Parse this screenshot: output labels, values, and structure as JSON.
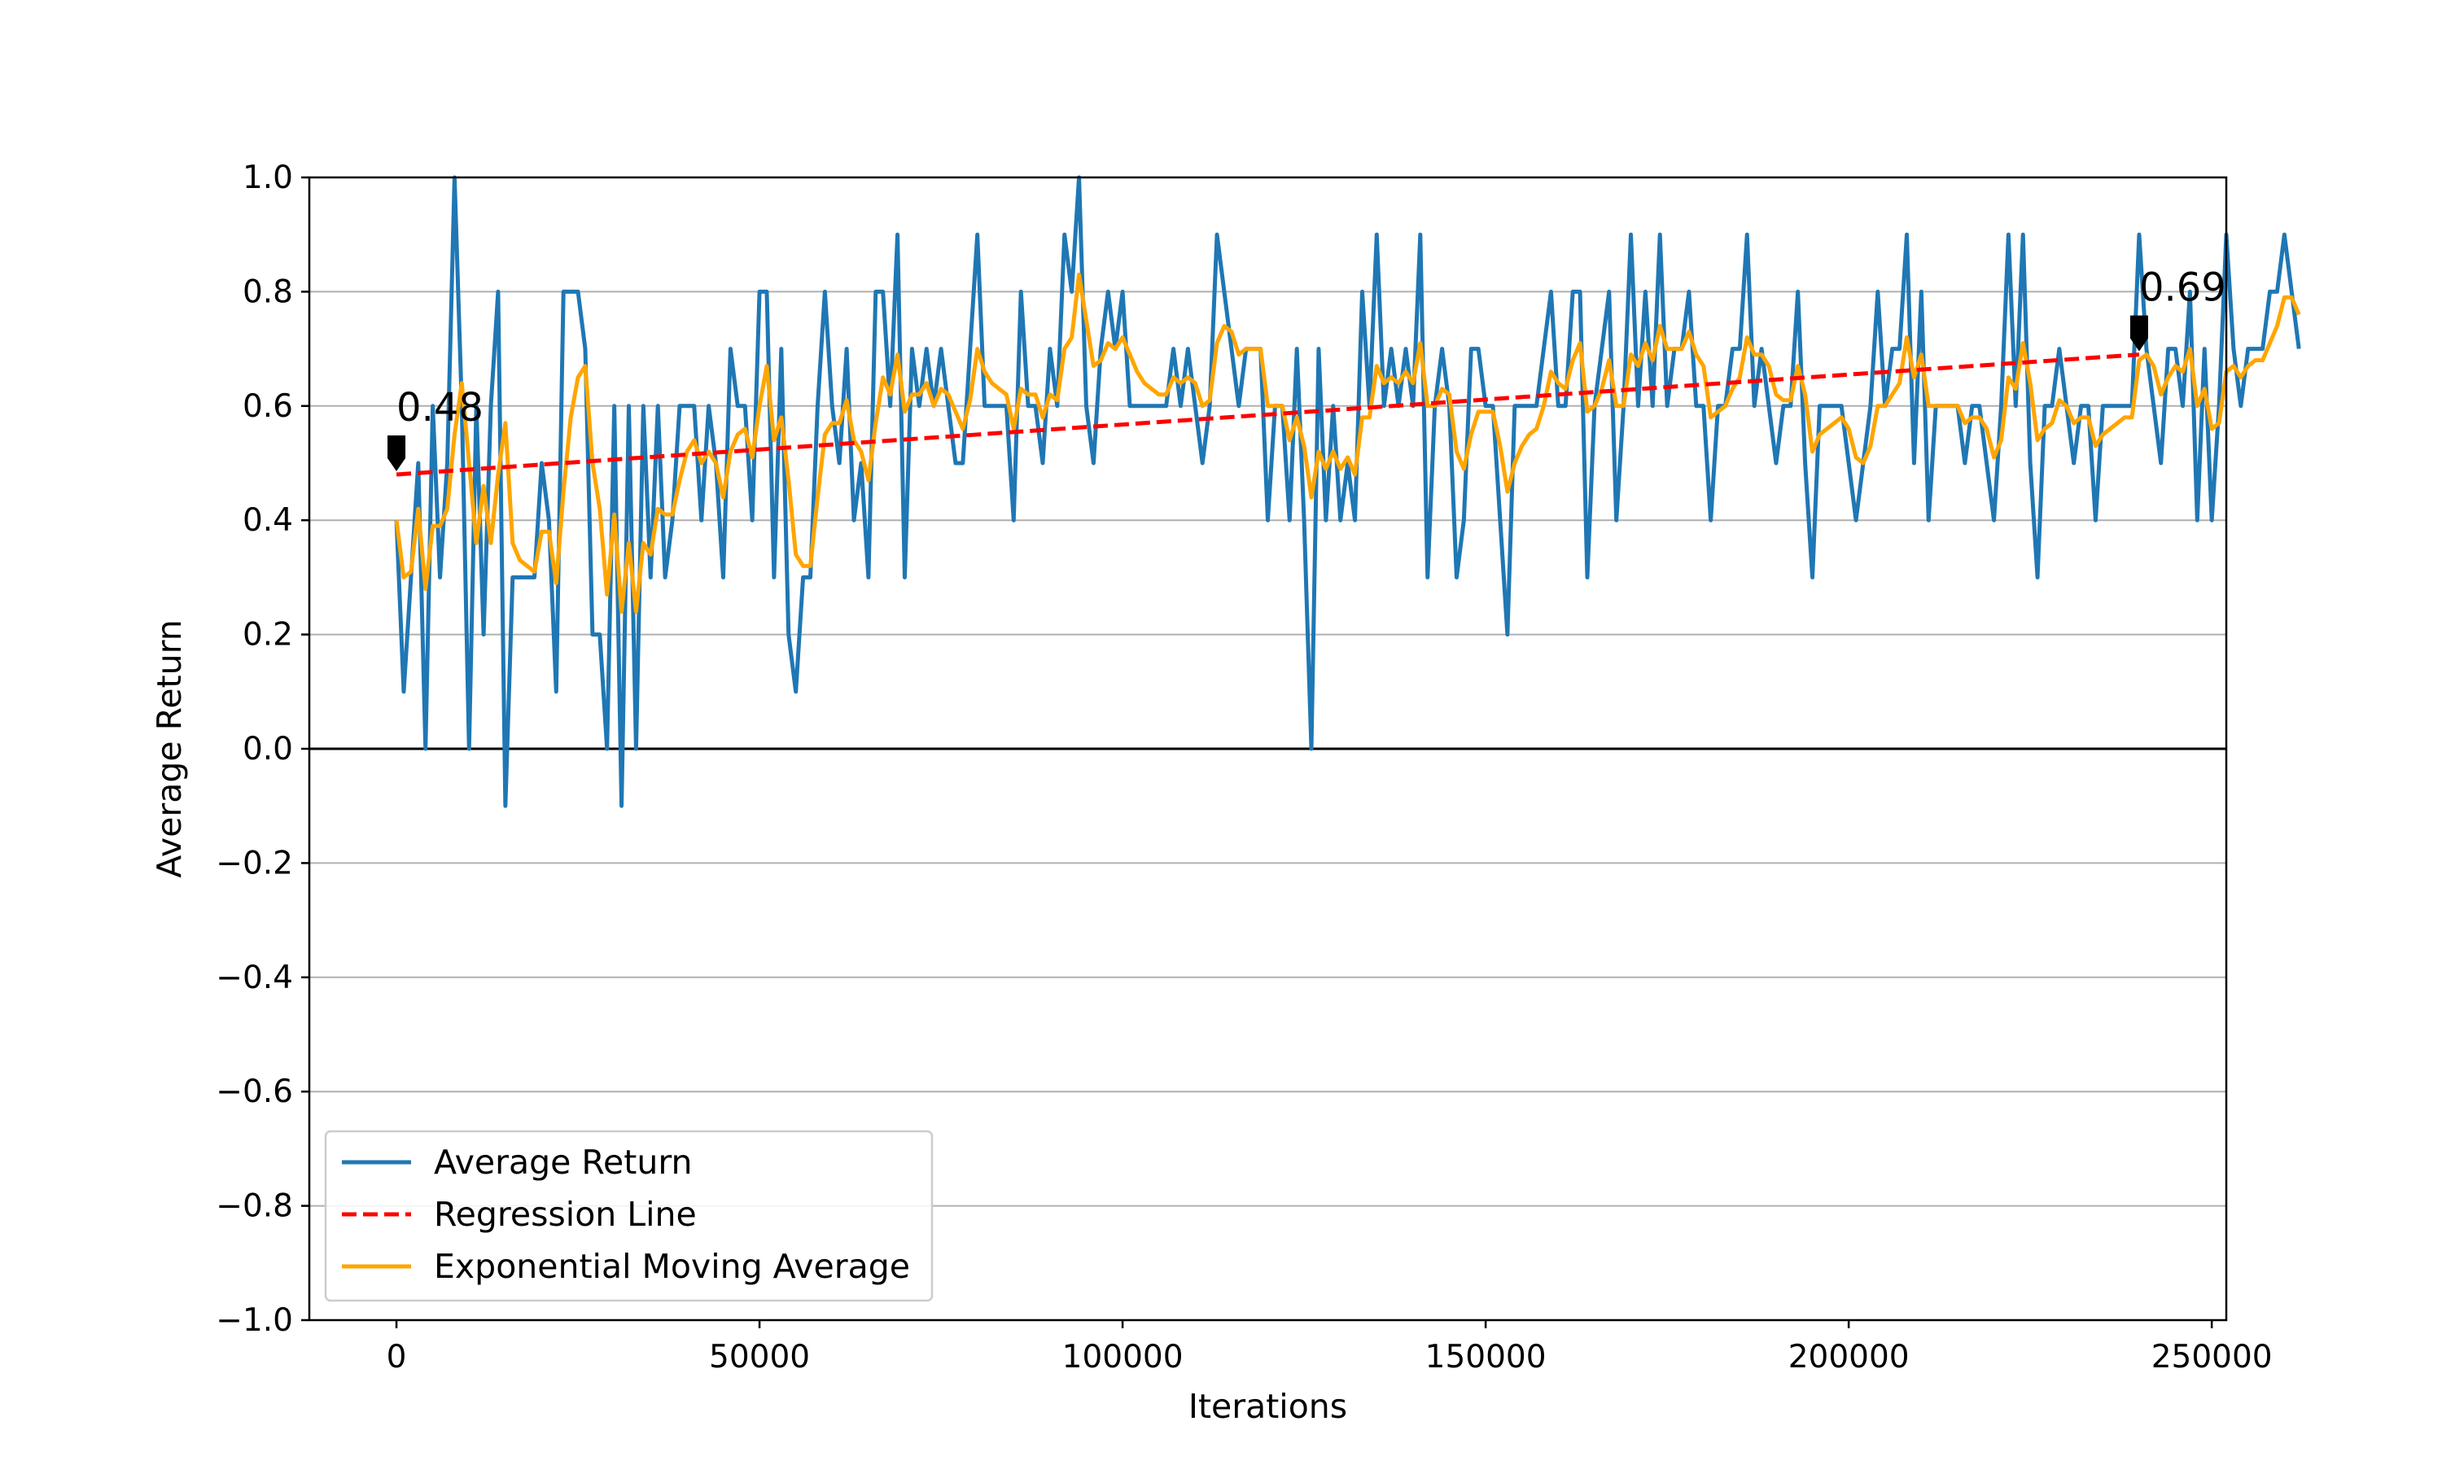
{
  "chart_data": {
    "type": "line",
    "title": "",
    "xlabel": "Iterations",
    "ylabel": "Average Return",
    "xlim": [
      -12000,
      252000
    ],
    "ylim": [
      -1.0,
      1.0
    ],
    "x_ticks": [
      0,
      50000,
      100000,
      150000,
      200000,
      250000
    ],
    "x_tick_labels": [
      "0",
      "50000",
      "100000",
      "150000",
      "200000",
      "250000"
    ],
    "y_ticks": [
      -1.0,
      -0.8,
      -0.6,
      -0.4,
      -0.2,
      0.0,
      0.2,
      0.4,
      0.6,
      0.8,
      1.0
    ],
    "y_tick_labels": [
      "−1.0",
      "−0.8",
      "−0.6",
      "−0.4",
      "−0.2",
      "0.0",
      "0.2",
      "0.4",
      "0.6",
      "0.8",
      "1.0"
    ],
    "grid": "horizontal",
    "legend_position": "lower-left",
    "x_step": 1000,
    "series": [
      {
        "name": "Average Return",
        "color": "#1f77b4",
        "style": "solid",
        "values": [
          0.4,
          0.1,
          0.3,
          0.5,
          0.0,
          0.6,
          0.3,
          0.5,
          1.0,
          0.6,
          0.0,
          0.6,
          0.2,
          0.6,
          0.8,
          -0.1,
          0.3,
          0.3,
          0.3,
          0.3,
          0.5,
          0.4,
          0.1,
          0.8,
          0.8,
          0.8,
          0.7,
          0.2,
          0.2,
          0.0,
          0.6,
          -0.1,
          0.6,
          0.0,
          0.6,
          0.3,
          0.6,
          0.3,
          0.4,
          0.6,
          0.6,
          0.6,
          0.4,
          0.6,
          0.5,
          0.3,
          0.7,
          0.6,
          0.6,
          0.4,
          0.8,
          0.8,
          0.3,
          0.7,
          0.2,
          0.1,
          0.3,
          0.3,
          0.6,
          0.8,
          0.6,
          0.5,
          0.7,
          0.4,
          0.5,
          0.3,
          0.8,
          0.8,
          0.6,
          0.9,
          0.3,
          0.7,
          0.6,
          0.7,
          0.6,
          0.7,
          0.6,
          0.5,
          0.5,
          0.7,
          0.9,
          0.6,
          0.6,
          0.6,
          0.6,
          0.4,
          0.8,
          0.6,
          0.6,
          0.5,
          0.7,
          0.6,
          0.9,
          0.8,
          1.0,
          0.6,
          0.5,
          0.7,
          0.8,
          0.7,
          0.8,
          0.6,
          0.6,
          0.6,
          0.6,
          0.6,
          0.6,
          0.7,
          0.6,
          0.7,
          0.6,
          0.5,
          0.6,
          0.9,
          0.8,
          0.7,
          0.6,
          0.7,
          0.7,
          0.7,
          0.4,
          0.6,
          0.6,
          0.4,
          0.7,
          0.4,
          0.0,
          0.7,
          0.4,
          0.6,
          0.4,
          0.5,
          0.4,
          0.8,
          0.6,
          0.9,
          0.6,
          0.7,
          0.6,
          0.7,
          0.6,
          0.9,
          0.3,
          0.6,
          0.7,
          0.6,
          0.3,
          0.4,
          0.7,
          0.7,
          0.6,
          0.6,
          0.4,
          0.2,
          0.6,
          0.6,
          0.6,
          0.6,
          0.7,
          0.8,
          0.6,
          0.6,
          0.8,
          0.8,
          0.3,
          0.6,
          0.7,
          0.8,
          0.4,
          0.6,
          0.9,
          0.6,
          0.8,
          0.6,
          0.9,
          0.6,
          0.7,
          0.7,
          0.8,
          0.6,
          0.6,
          0.4,
          0.6,
          0.6,
          0.7,
          0.7,
          0.9,
          0.6,
          0.7,
          0.6,
          0.5,
          0.6,
          0.6,
          0.8,
          0.5,
          0.3,
          0.6,
          0.6,
          0.6,
          0.6,
          0.5,
          0.4,
          0.5,
          0.6,
          0.8,
          0.6,
          0.7,
          0.7,
          0.9,
          0.5,
          0.8,
          0.4,
          0.6,
          0.6,
          0.6,
          0.6,
          0.5,
          0.6,
          0.6,
          0.5,
          0.4,
          0.6,
          0.9,
          0.6,
          0.9,
          0.5,
          0.3,
          0.6,
          0.6,
          0.7,
          0.6,
          0.5,
          0.6,
          0.6,
          0.4,
          0.6,
          0.6,
          0.6,
          0.6,
          0.6,
          0.9,
          0.7,
          0.6,
          0.5,
          0.7,
          0.7,
          0.6,
          0.8,
          0.4,
          0.7,
          0.4,
          0.6,
          0.9,
          0.7,
          0.6,
          0.7,
          0.7,
          0.7,
          0.8,
          0.8,
          0.9,
          0.8,
          0.7
        ]
      },
      {
        "name": "Regression Line",
        "color": "#ff0000",
        "style": "dashed",
        "x": [
          0,
          240000
        ],
        "values": [
          0.48,
          0.69
        ]
      },
      {
        "name": "Exponential Moving Average",
        "color": "#ffa500",
        "style": "solid",
        "values": [
          0.4,
          0.3,
          0.31,
          0.42,
          0.28,
          0.39,
          0.39,
          0.42,
          0.55,
          0.64,
          0.5,
          0.36,
          0.46,
          0.36,
          0.48,
          0.57,
          0.36,
          0.33,
          0.32,
          0.31,
          0.38,
          0.38,
          0.29,
          0.45,
          0.58,
          0.65,
          0.67,
          0.5,
          0.42,
          0.27,
          0.41,
          0.24,
          0.36,
          0.24,
          0.36,
          0.34,
          0.42,
          0.41,
          0.41,
          0.47,
          0.52,
          0.54,
          0.5,
          0.52,
          0.5,
          0.44,
          0.52,
          0.55,
          0.56,
          0.51,
          0.6,
          0.67,
          0.54,
          0.58,
          0.47,
          0.34,
          0.32,
          0.32,
          0.44,
          0.55,
          0.57,
          0.57,
          0.61,
          0.54,
          0.52,
          0.47,
          0.57,
          0.65,
          0.62,
          0.69,
          0.59,
          0.62,
          0.62,
          0.64,
          0.6,
          0.63,
          0.62,
          0.59,
          0.56,
          0.61,
          0.7,
          0.66,
          0.64,
          0.63,
          0.62,
          0.56,
          0.63,
          0.62,
          0.62,
          0.58,
          0.62,
          0.61,
          0.7,
          0.72,
          0.83,
          0.75,
          0.67,
          0.68,
          0.71,
          0.7,
          0.72,
          0.69,
          0.66,
          0.64,
          0.63,
          0.62,
          0.62,
          0.65,
          0.64,
          0.65,
          0.64,
          0.6,
          0.61,
          0.71,
          0.74,
          0.73,
          0.69,
          0.7,
          0.7,
          0.7,
          0.6,
          0.6,
          0.6,
          0.54,
          0.58,
          0.53,
          0.44,
          0.52,
          0.49,
          0.52,
          0.49,
          0.51,
          0.48,
          0.58,
          0.58,
          0.67,
          0.64,
          0.65,
          0.64,
          0.66,
          0.64,
          0.71,
          0.6,
          0.6,
          0.63,
          0.62,
          0.52,
          0.49,
          0.55,
          0.59,
          0.59,
          0.59,
          0.53,
          0.45,
          0.5,
          0.53,
          0.55,
          0.56,
          0.6,
          0.66,
          0.64,
          0.63,
          0.68,
          0.71,
          0.59,
          0.6,
          0.63,
          0.68,
          0.6,
          0.6,
          0.69,
          0.67,
          0.71,
          0.68,
          0.74,
          0.7,
          0.7,
          0.7,
          0.73,
          0.69,
          0.67,
          0.58,
          0.59,
          0.6,
          0.63,
          0.65,
          0.72,
          0.69,
          0.69,
          0.67,
          0.62,
          0.61,
          0.61,
          0.67,
          0.62,
          0.52,
          0.55,
          0.56,
          0.57,
          0.58,
          0.56,
          0.51,
          0.5,
          0.53,
          0.6,
          0.6,
          0.62,
          0.64,
          0.72,
          0.65,
          0.69,
          0.6,
          0.6,
          0.6,
          0.6,
          0.6,
          0.57,
          0.58,
          0.58,
          0.56,
          0.51,
          0.54,
          0.65,
          0.63,
          0.71,
          0.64,
          0.54,
          0.56,
          0.57,
          0.61,
          0.6,
          0.57,
          0.58,
          0.58,
          0.53,
          0.55,
          0.56,
          0.57,
          0.58,
          0.58,
          0.68,
          0.69,
          0.67,
          0.62,
          0.65,
          0.67,
          0.66,
          0.7,
          0.6,
          0.63,
          0.56,
          0.57,
          0.66,
          0.67,
          0.65,
          0.67,
          0.68,
          0.68,
          0.71,
          0.74,
          0.79,
          0.79,
          0.76
        ]
      }
    ],
    "annotations": [
      {
        "text": "0.48",
        "x": 0,
        "y": 0.48
      },
      {
        "text": "0.69",
        "x": 240000,
        "y": 0.69
      }
    ]
  }
}
